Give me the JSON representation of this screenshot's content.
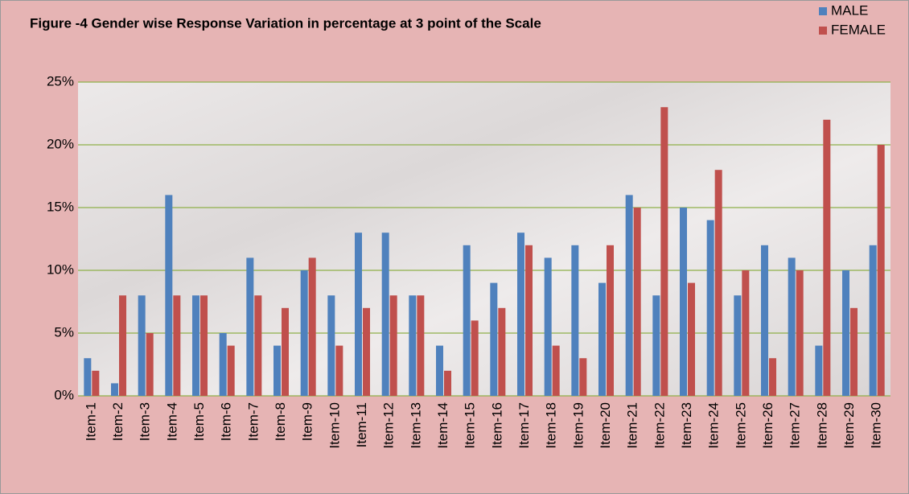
{
  "chart_data": {
    "type": "bar",
    "title": "Figure -4 Gender wise Response Variation in percentage at 3 point of the Scale",
    "categories": [
      "Item-1",
      "Item-2",
      "Item-3",
      "Item-4",
      "Item-5",
      "Item-6",
      "Item-7",
      "Item-8",
      "Item-9",
      "Item-10",
      "Item-11",
      "Item-12",
      "Item-13",
      "Item-14",
      "Item-15",
      "Item-16",
      "Item-17",
      "Item-18",
      "Item-19",
      "Item-20",
      "Item-21",
      "Item-22",
      "Item-23",
      "Item-24",
      "Item-25",
      "Item-26",
      "Item-27",
      "Item-28",
      "Item-29",
      "Item-30"
    ],
    "series": [
      {
        "name": "MALE",
        "color": "#4f81bd",
        "values": [
          3,
          1,
          8,
          16,
          8,
          5,
          11,
          4,
          10,
          8,
          13,
          13,
          8,
          4,
          12,
          9,
          13,
          11,
          12,
          9,
          16,
          8,
          15,
          14,
          8,
          12,
          11,
          4,
          10,
          12
        ]
      },
      {
        "name": "FEMALE",
        "color": "#c0504d",
        "values": [
          2,
          8,
          5,
          8,
          8,
          4,
          8,
          7,
          11,
          4,
          7,
          8,
          8,
          2,
          6,
          7,
          12,
          4,
          3,
          12,
          15,
          23,
          9,
          18,
          10,
          3,
          10,
          22,
          7,
          20
        ]
      }
    ],
    "ylim": [
      0,
      25
    ],
    "yticks": [
      {
        "value": 0,
        "label": "0%"
      },
      {
        "value": 5,
        "label": "5%"
      },
      {
        "value": 10,
        "label": "10%"
      },
      {
        "value": 15,
        "label": "15%"
      },
      {
        "value": 20,
        "label": "20%"
      },
      {
        "value": 25,
        "label": "25%"
      }
    ],
    "grid": true,
    "grid_color": "#8fb04a",
    "legend": "top-right"
  }
}
